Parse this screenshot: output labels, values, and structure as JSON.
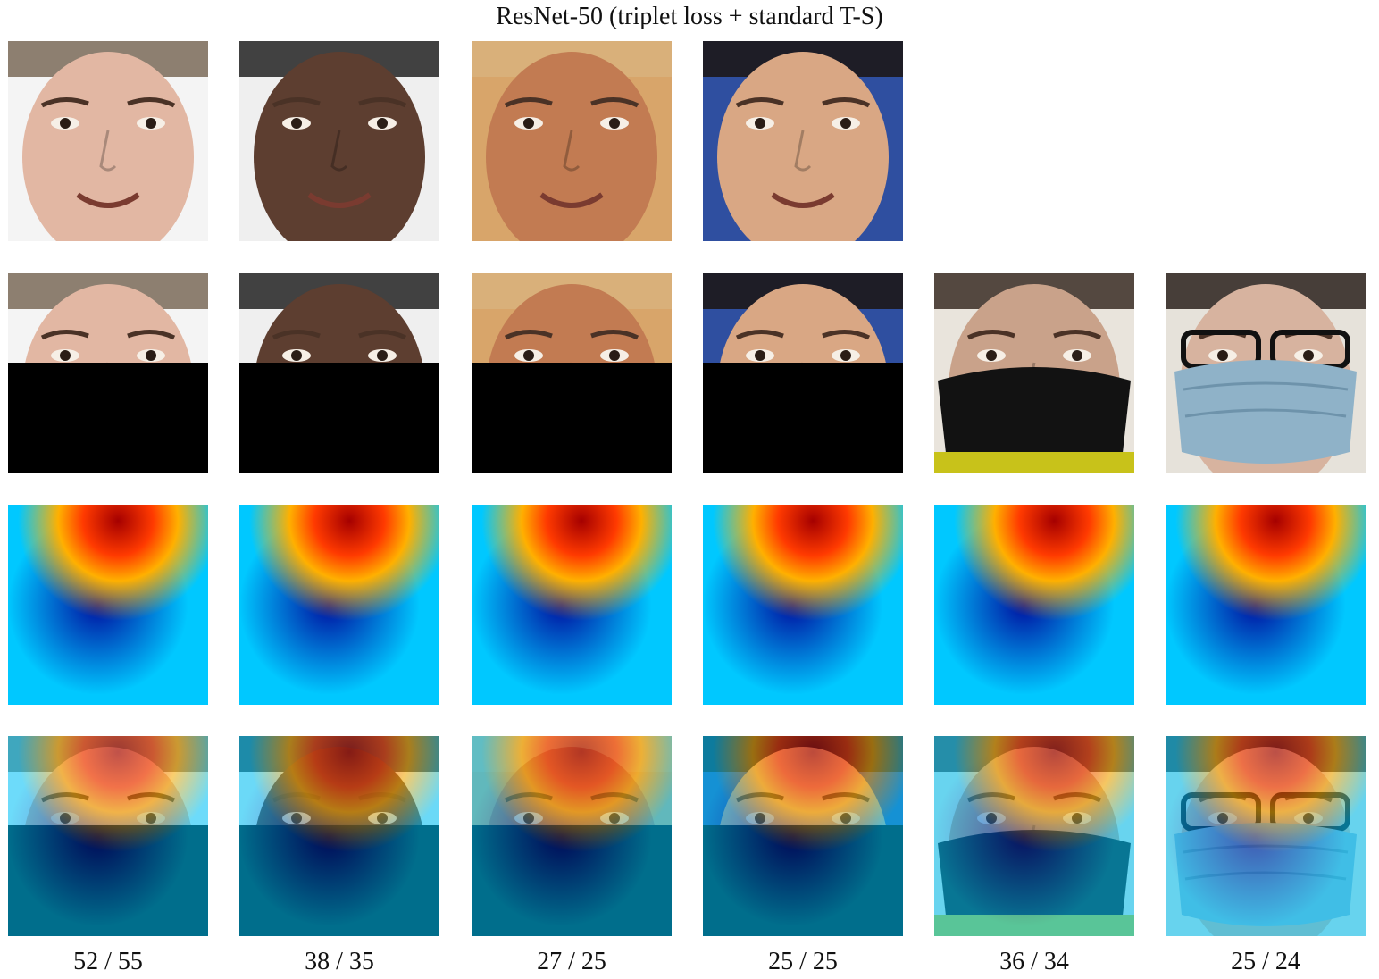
{
  "figure": {
    "title": "ResNet-50 (triplet loss + standard T-S)"
  },
  "columns": [
    {
      "subject": "face-1",
      "score": "52 / 55",
      "skin": "#e2b7a3",
      "bg": "#f4f4f4",
      "hair": "#7a6a58",
      "occlusion": "black-box"
    },
    {
      "subject": "face-2",
      "score": "38 / 35",
      "skin": "#5d3e30",
      "bg": "#efefef",
      "hair": "#222222",
      "occlusion": "black-box"
    },
    {
      "subject": "face-3",
      "score": "27 / 25",
      "skin": "#c27b52",
      "bg": "#d8a56a",
      "hair": "#d9b27c",
      "occlusion": "black-box"
    },
    {
      "subject": "face-4",
      "score": "25 / 25",
      "skin": "#d9a784",
      "bg": "#2f4fa0",
      "hair": "#1b1410",
      "occlusion": "black-box"
    },
    {
      "subject": "face-5",
      "score": "36 / 34",
      "skin": "#c9a28a",
      "bg": "#e9e4dc",
      "hair": "#3a2d24",
      "occlusion": "black-mask"
    },
    {
      "subject": "face-6",
      "score": "25 / 24",
      "skin": "#d7b39f",
      "bg": "#e6e2da",
      "hair": "#2a211c",
      "occlusion": "surgical-mask"
    }
  ],
  "colors": {
    "occluder": "#000000",
    "heat_hot": "#a50000",
    "heat_warm": "#ffb000",
    "heat_cool": "#00c8ff",
    "heat_cold": "#0010a0"
  }
}
